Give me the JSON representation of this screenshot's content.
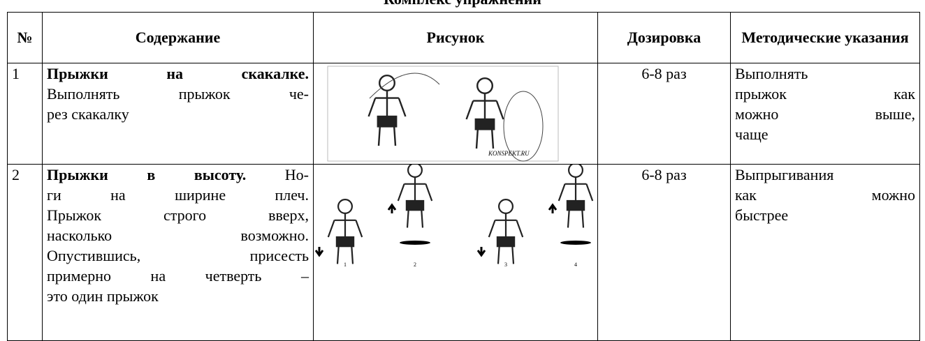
{
  "title": "Комплекс упражнений",
  "table": {
    "headers": [
      "№",
      "Содержание",
      "Рисунок",
      "Дозировка",
      "Методические указания"
    ],
    "rows": [
      {
        "number": "1",
        "content": {
          "lead": "Прыжки на скакалке.",
          "lines": [
            "",
            "Выполнять прыжок че-",
            "рез скакалку"
          ]
        },
        "picture": {
          "labels": [
            "KONSPEKT.RU"
          ]
        },
        "dosage": "6-8 раз",
        "notes": [
          "Выполнять",
          "прыжок как",
          "можно выше,",
          "чаще"
        ]
      },
      {
        "number": "2",
        "content": {
          "lead": "Прыжки в высоту.",
          "lines": " Но-|ги на ширине плеч.|Прыжок строго вверх,|насколько возможно.|Опустившись, присесть|примерно на четверть –|это один прыжок"
        },
        "picture": {
          "labels": [
            "1",
            "2",
            "3",
            "4"
          ]
        },
        "dosage": "6-8 раз",
        "notes": [
          "Выпрыгивания",
          "как можно",
          "быстрее"
        ]
      }
    ]
  }
}
